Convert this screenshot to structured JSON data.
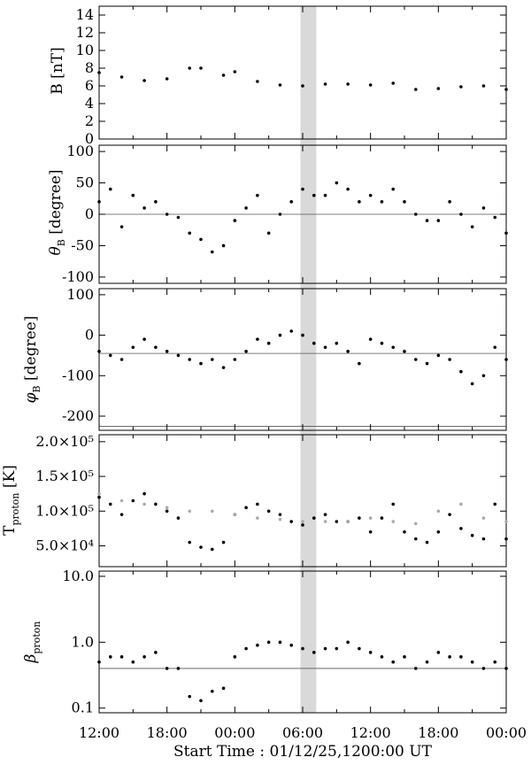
{
  "figure": {
    "x_axis_title": "Start Time : 01/12/25,1200:00 UT",
    "x_tick_labels": [
      "12:00",
      "18:00",
      "00:00",
      "06:00",
      "12:00",
      "18:00",
      "00:00"
    ],
    "shaded_interval": {
      "start_hours": 17.8,
      "end_hours": 19.2,
      "color": "#d9d9d9"
    },
    "data_color": "#000000",
    "secondary_color": "#aaaaaa"
  },
  "chart_data": [
    {
      "type": "scatter",
      "ylabel": "B [nT]",
      "ylim": [
        0,
        15
      ],
      "yticks": [
        0,
        2,
        4,
        6,
        8,
        10,
        12,
        14
      ],
      "ytick_labels": [
        "0",
        "2",
        "4",
        "6",
        "8",
        "10",
        "12",
        "14"
      ],
      "reference_lines": [],
      "series": [
        {
          "color": "#000000",
          "x": [
            0,
            2,
            4,
            6,
            8,
            9,
            11,
            12,
            14,
            16,
            18,
            20,
            22,
            24,
            26,
            28,
            30,
            32,
            34,
            36
          ],
          "y": [
            7.5,
            7.0,
            6.6,
            6.8,
            8.0,
            8.0,
            7.2,
            7.6,
            6.5,
            6.1,
            6.0,
            6.2,
            6.2,
            6.1,
            6.3,
            5.6,
            5.7,
            5.9,
            6.0,
            5.6
          ]
        }
      ]
    },
    {
      "type": "scatter",
      "ylabel": "θB [degree]",
      "ylim": [
        -110,
        110
      ],
      "yticks": [
        -100,
        -50,
        0,
        50,
        100
      ],
      "ytick_labels": [
        "-100",
        "-50",
        "0",
        "50",
        "100"
      ],
      "reference_lines": [
        0
      ],
      "series": [
        {
          "color": "#000000",
          "x": [
            0,
            1,
            2,
            3,
            4,
            5,
            6,
            7,
            8,
            9,
            10,
            11,
            12,
            13,
            14,
            15,
            16,
            17,
            18,
            19,
            20,
            21,
            22,
            23,
            24,
            25,
            26,
            27,
            28,
            29,
            30,
            31,
            32,
            33,
            34,
            35,
            36
          ],
          "y": [
            20,
            40,
            -20,
            30,
            10,
            20,
            0,
            -5,
            -30,
            -40,
            -60,
            -50,
            -10,
            10,
            30,
            -30,
            0,
            20,
            40,
            30,
            30,
            50,
            40,
            20,
            30,
            20,
            40,
            20,
            0,
            -10,
            -10,
            20,
            0,
            -20,
            10,
            -5,
            -30
          ]
        }
      ]
    },
    {
      "type": "scatter",
      "ylabel": "φB [degree]",
      "ylim": [
        -235,
        115
      ],
      "yticks": [
        -200,
        -100,
        0,
        100
      ],
      "ytick_labels": [
        "-200",
        "-100",
        "0",
        "100"
      ],
      "reference_lines": [
        -45,
        -225
      ],
      "series": [
        {
          "color": "#000000",
          "x": [
            0,
            1,
            2,
            3,
            4,
            5,
            6,
            7,
            8,
            9,
            10,
            11,
            12,
            13,
            14,
            15,
            16,
            17,
            18,
            19,
            20,
            21,
            22,
            23,
            24,
            25,
            26,
            27,
            28,
            29,
            30,
            31,
            32,
            33,
            34,
            35,
            36
          ],
          "y": [
            -40,
            -50,
            -60,
            -30,
            -10,
            -30,
            -40,
            -50,
            -60,
            -70,
            -60,
            -80,
            -60,
            -40,
            -10,
            -20,
            0,
            10,
            0,
            -20,
            -30,
            -20,
            -40,
            -70,
            -10,
            -20,
            -30,
            -40,
            -60,
            -70,
            -50,
            -60,
            -90,
            -120,
            -100,
            -30,
            -60
          ]
        }
      ]
    },
    {
      "type": "scatter",
      "ylabel": "Tproton [K]",
      "ylim": [
        20000,
        210000
      ],
      "yticks": [
        50000,
        100000,
        150000,
        200000
      ],
      "ytick_labels": [
        "5.0×10⁴",
        "1.0×10⁵",
        "1.5×10⁵",
        "2.0×10⁵"
      ],
      "reference_lines": [],
      "series": [
        {
          "color": "#000000",
          "x": [
            0,
            1,
            2,
            3,
            4,
            5,
            6,
            7,
            8,
            9,
            10,
            11,
            12,
            13,
            14,
            15,
            16,
            17,
            18,
            19,
            20,
            21,
            22,
            23,
            24,
            25,
            26,
            27,
            28,
            29,
            30,
            31,
            32,
            33,
            34,
            35,
            36
          ],
          "y": [
            120000,
            110000,
            95000,
            115000,
            125000,
            110000,
            100000,
            90000,
            55000,
            48000,
            45000,
            55000,
            95000,
            105000,
            110000,
            100000,
            95000,
            85000,
            80000,
            90000,
            95000,
            85000,
            85000,
            90000,
            70000,
            90000,
            110000,
            70000,
            60000,
            55000,
            70000,
            95000,
            75000,
            65000,
            60000,
            110000,
            60000
          ]
        },
        {
          "color": "#aaaaaa",
          "x": [
            0,
            2,
            4,
            6,
            8,
            10,
            12,
            14,
            16,
            18,
            20,
            22,
            24,
            26,
            28,
            30,
            32,
            34,
            36
          ],
          "y": [
            125000,
            115000,
            110000,
            105000,
            100000,
            100000,
            95000,
            90000,
            88000,
            85000,
            85000,
            85000,
            90000,
            85000,
            82000,
            100000,
            110000,
            90000,
            85000
          ]
        }
      ]
    },
    {
      "type": "scatter",
      "ylabel": "βproton",
      "ylim": [
        0.085,
        12
      ],
      "yscale": "log",
      "yticks": [
        0.1,
        1.0,
        10.0
      ],
      "ytick_labels": [
        "0.1",
        "1.0",
        "10.0"
      ],
      "reference_lines": [
        0.4
      ],
      "series": [
        {
          "color": "#000000",
          "x": [
            0,
            1,
            2,
            3,
            4,
            5,
            6,
            7,
            8,
            9,
            10,
            11,
            12,
            13,
            14,
            15,
            16,
            17,
            18,
            19,
            20,
            21,
            22,
            23,
            24,
            25,
            26,
            27,
            28,
            29,
            30,
            31,
            32,
            33,
            34,
            35,
            36
          ],
          "y": [
            0.5,
            0.6,
            0.6,
            0.5,
            0.6,
            0.7,
            0.4,
            0.4,
            0.15,
            0.13,
            0.18,
            0.2,
            0.6,
            0.8,
            0.9,
            1.0,
            1.0,
            0.9,
            0.8,
            0.7,
            0.8,
            0.8,
            1.0,
            0.8,
            0.7,
            0.6,
            0.5,
            0.6,
            0.4,
            0.5,
            0.7,
            0.6,
            0.6,
            0.5,
            0.4,
            0.5,
            0.4
          ]
        }
      ]
    }
  ]
}
